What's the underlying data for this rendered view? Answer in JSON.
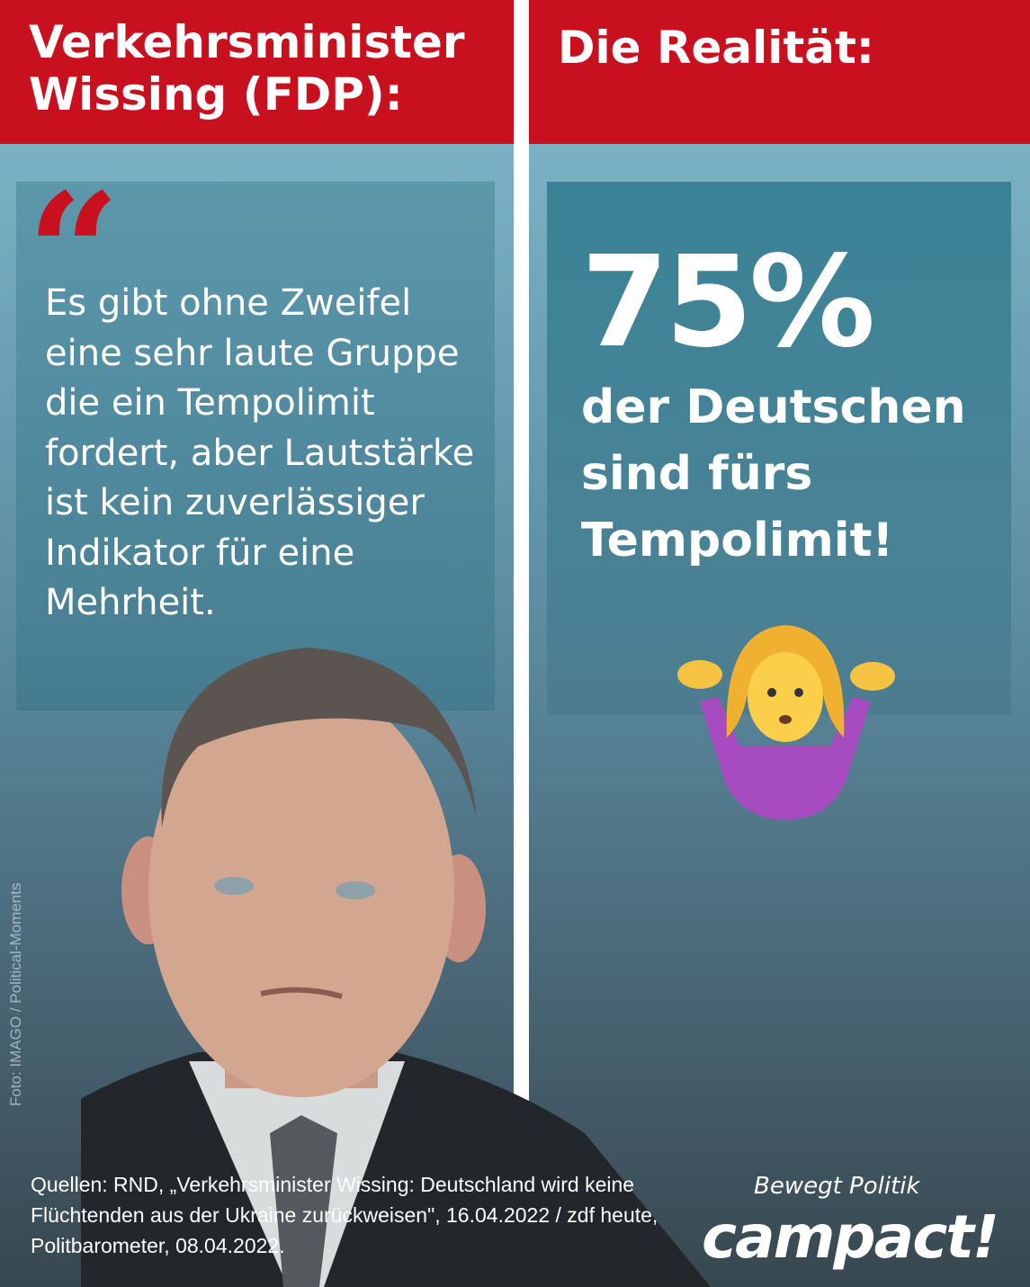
{
  "left_header": {
    "line1": "Verkehrsminister",
    "line2": "Wissing (FDP):"
  },
  "right_header": "Die Realität:",
  "quote": {
    "mark": "“",
    "text": "Es gibt ohne Zweifel eine sehr laute Gruppe die ein Tempolimit fordert, aber Lautstärke ist kein zuverlässiger Indikator für eine Mehrheit."
  },
  "stat": {
    "percent": "75%",
    "line1": "der Deutschen",
    "line2": "sind fürs",
    "line3": "Tempolimit!"
  },
  "emoji": "person-shrugging",
  "photo_credit": "Foto: IMAGO / Political-Moments",
  "sources": "Quellen: RND, „Verkehrsminister Wissing: Deutschland wird keine Flüchtenden aus der Ukraine zurückweisen\", 16.04.2022 / zdf heute, Politbarometer, 08.04.2022.",
  "logo": {
    "slogan": "Bewegt Politik",
    "brand": "campact!"
  },
  "colors": {
    "red": "#c8101f",
    "white": "#ffffff"
  }
}
